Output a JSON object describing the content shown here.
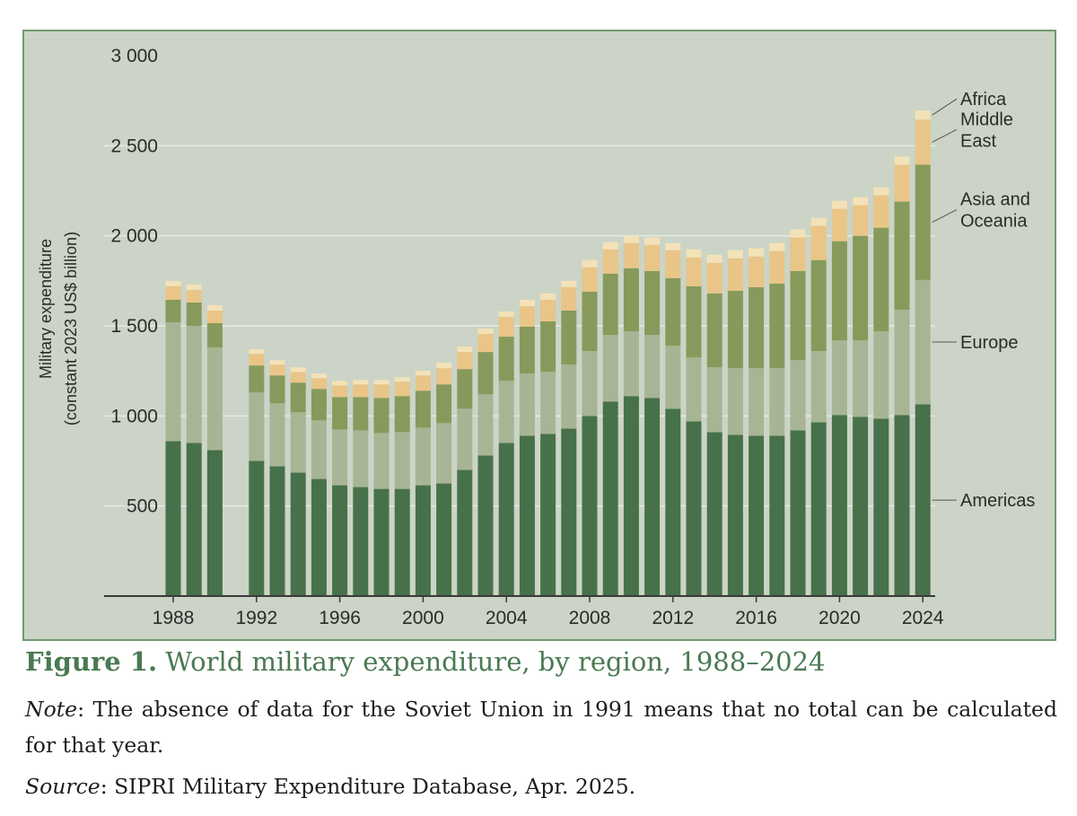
{
  "chart_data": {
    "type": "stacked-bar",
    "y_label_line1": "Military expenditure",
    "y_label_line2": "(constant 2023 US$ billion)",
    "ylim": [
      0,
      3000
    ],
    "y_ticks": [
      {
        "value": 500,
        "label": "500"
      },
      {
        "value": 1000,
        "label": "1 000"
      },
      {
        "value": 1500,
        "label": "1 500"
      },
      {
        "value": 2000,
        "label": "2 000"
      },
      {
        "value": 2500,
        "label": "2 500"
      },
      {
        "value": 3000,
        "label": "3 000"
      }
    ],
    "x_tick_labels": [
      "1988",
      "1992",
      "1996",
      "2000",
      "2004",
      "2008",
      "2012",
      "2016",
      "2020",
      "2024"
    ],
    "years": [
      1988,
      1989,
      1990,
      1991,
      1992,
      1993,
      1994,
      1995,
      1996,
      1997,
      1998,
      1999,
      2000,
      2001,
      2002,
      2003,
      2004,
      2005,
      2006,
      2007,
      2008,
      2009,
      2010,
      2011,
      2012,
      2013,
      2014,
      2015,
      2016,
      2017,
      2018,
      2019,
      2020,
      2021,
      2022,
      2023,
      2024
    ],
    "series": [
      {
        "name": "Americas",
        "color": "#47714a",
        "values": [
          860,
          850,
          810,
          null,
          750,
          720,
          685,
          650,
          615,
          605,
          595,
          595,
          615,
          625,
          700,
          780,
          850,
          890,
          900,
          930,
          1000,
          1080,
          1110,
          1100,
          1040,
          970,
          910,
          895,
          890,
          890,
          920,
          965,
          1005,
          995,
          985,
          1005,
          1065
        ]
      },
      {
        "name": "Europe",
        "color": "#a7b595",
        "values": [
          660,
          650,
          570,
          null,
          380,
          350,
          335,
          325,
          310,
          315,
          310,
          315,
          320,
          335,
          340,
          340,
          345,
          345,
          345,
          355,
          360,
          370,
          360,
          350,
          350,
          355,
          360,
          370,
          375,
          375,
          390,
          395,
          415,
          425,
          485,
          585,
          690
        ]
      },
      {
        "name": "Asia and Oceania",
        "color": "#879a5c",
        "values": [
          125,
          130,
          135,
          null,
          150,
          155,
          165,
          175,
          180,
          185,
          195,
          200,
          205,
          215,
          220,
          235,
          245,
          260,
          280,
          300,
          330,
          340,
          350,
          355,
          375,
          395,
          410,
          430,
          450,
          470,
          495,
          505,
          550,
          580,
          575,
          600,
          640
        ]
      },
      {
        "name": "Middle East",
        "color": "#e9c588",
        "values": [
          75,
          70,
          70,
          null,
          65,
          60,
          60,
          60,
          65,
          70,
          75,
          80,
          85,
          90,
          95,
          100,
          110,
          115,
          120,
          130,
          135,
          135,
          140,
          145,
          155,
          160,
          170,
          180,
          170,
          180,
          185,
          190,
          180,
          170,
          180,
          205,
          250
        ]
      },
      {
        "name": "Africa",
        "color": "#f3e2b8",
        "values": [
          30,
          30,
          30,
          null,
          25,
          25,
          25,
          25,
          25,
          25,
          25,
          25,
          25,
          30,
          30,
          30,
          30,
          35,
          35,
          35,
          40,
          40,
          40,
          40,
          40,
          45,
          45,
          45,
          45,
          45,
          45,
          45,
          45,
          45,
          45,
          45,
          50
        ]
      }
    ]
  },
  "caption": {
    "label": "Figure 1.",
    "title": "World military expenditure, by region, 1988–2024"
  },
  "note": {
    "label": "Note",
    "text": ": The absence of data for the Soviet Union in 1991 means that no total can be calculated for that year."
  },
  "source": {
    "label": "Source",
    "text": ": SIPRI Military Expenditure Database, Apr. 2025."
  },
  "colors": {
    "panel_bg": "#cbd4c6",
    "panel_border": "#6f9a72",
    "gridline": "#e6ebe2",
    "axis": "#3a3a3a",
    "caption": "#4a7a52"
  }
}
